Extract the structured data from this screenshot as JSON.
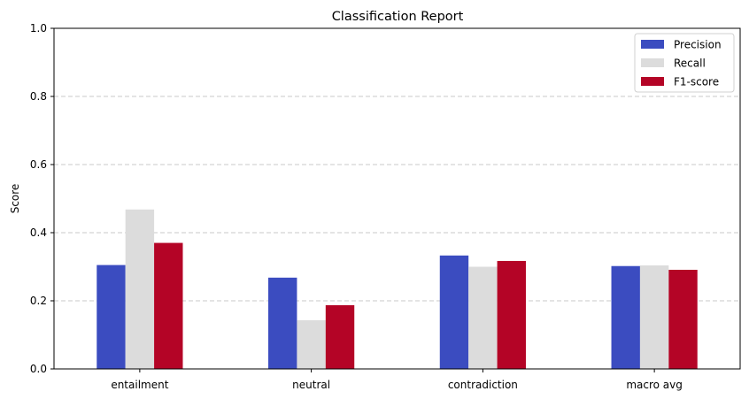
{
  "chart_data": {
    "type": "bar",
    "title": "Classification Report",
    "xlabel": "",
    "ylabel": "Score",
    "ylim": [
      0,
      1
    ],
    "yticks": [
      "0.0",
      "0.2",
      "0.4",
      "0.6",
      "0.8",
      "1.0"
    ],
    "grid": "y-dashed",
    "legend_position": "top-right",
    "categories": [
      "entailment",
      "neutral",
      "contradiction",
      "macro avg"
    ],
    "series": [
      {
        "name": "Precision",
        "color": "#3b4cc0",
        "values": [
          0.305,
          0.268,
          0.333,
          0.302
        ]
      },
      {
        "name": "Recall",
        "color": "#dcdcdc",
        "values": [
          0.468,
          0.143,
          0.3,
          0.304
        ]
      },
      {
        "name": "F1-score",
        "color": "#b40426",
        "values": [
          0.37,
          0.187,
          0.317,
          0.291
        ]
      }
    ]
  }
}
